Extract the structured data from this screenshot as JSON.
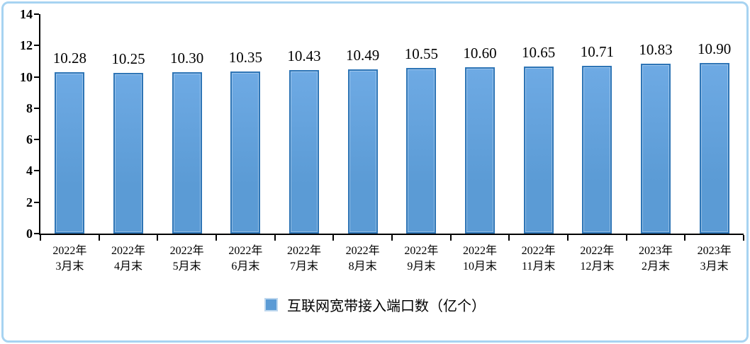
{
  "chart_data": {
    "type": "bar",
    "legend": "互联网宽带接入端口数（亿个）",
    "categories": [
      {
        "line1": "2022年",
        "line2": "3月末"
      },
      {
        "line1": "2022年",
        "line2": "4月末"
      },
      {
        "line1": "2022年",
        "line2": "5月末"
      },
      {
        "line1": "2022年",
        "line2": "6月末"
      },
      {
        "line1": "2022年",
        "line2": "7月末"
      },
      {
        "line1": "2022年",
        "line2": "8月末"
      },
      {
        "line1": "2022年",
        "line2": "9月末"
      },
      {
        "line1": "2022年",
        "line2": "10月末"
      },
      {
        "line1": "2022年",
        "line2": "11月末"
      },
      {
        "line1": "2022年",
        "line2": "12月末"
      },
      {
        "line1": "2023年",
        "line2": "2月末"
      },
      {
        "line1": "2023年",
        "line2": "3月末"
      }
    ],
    "values": [
      10.28,
      10.25,
      10.3,
      10.35,
      10.43,
      10.49,
      10.55,
      10.6,
      10.65,
      10.71,
      10.83,
      10.9
    ],
    "value_labels": [
      "10.28",
      "10.25",
      "10.30",
      "10.35",
      "10.43",
      "10.49",
      "10.55",
      "10.60",
      "10.65",
      "10.71",
      "10.83",
      "10.90"
    ],
    "ylim": [
      0,
      14
    ],
    "ytick_step": 2,
    "ytick_labels": [
      "0",
      "2",
      "4",
      "6",
      "8",
      "10",
      "12",
      "14"
    ],
    "grid": "off",
    "legend_position": "bottom-center",
    "xlabel": "",
    "ylabel": "",
    "title": ""
  },
  "colors": {
    "frame": "#A7D3F1",
    "axis": "#000000",
    "bar_fill": "#5B9BD5",
    "bar_fill_light": "#6EAAE4",
    "bar_border": "#2E75B6",
    "legend_swatch_border": "#BDD7EE",
    "text": "#000000",
    "background": "#FFFFFF"
  }
}
